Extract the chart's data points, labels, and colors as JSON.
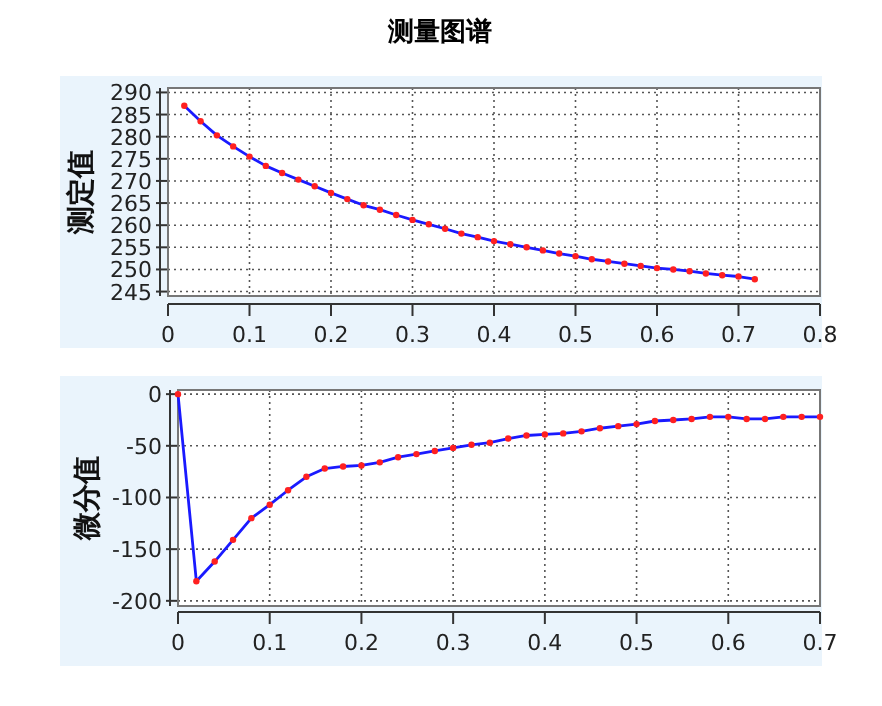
{
  "chart_data": [
    {
      "type": "line",
      "title": "测量图谱",
      "ylabel": "测定值",
      "x": [
        0.02,
        0.04,
        0.06,
        0.08,
        0.1,
        0.12,
        0.14,
        0.16,
        0.18,
        0.2,
        0.22,
        0.24,
        0.26,
        0.28,
        0.3,
        0.32,
        0.34,
        0.36,
        0.38,
        0.4,
        0.42,
        0.44,
        0.46,
        0.48,
        0.5,
        0.52,
        0.54,
        0.56,
        0.58,
        0.6,
        0.62,
        0.64,
        0.66,
        0.68,
        0.7,
        0.72
      ],
      "series": [
        {
          "color": "#1a1aff",
          "values": [
            287,
            283.5,
            280.3,
            277.8,
            275.5,
            273.4,
            271.8,
            270.3,
            268.8,
            267.3,
            265.9,
            264.5,
            263.5,
            262.3,
            261.2,
            260.2,
            259.2,
            258.1,
            257.3,
            256.4,
            255.7,
            255,
            254.3,
            253.6,
            253,
            252.3,
            251.8,
            251.3,
            250.8,
            250.3,
            250,
            249.6,
            249.1,
            248.7,
            248.4,
            247.8
          ]
        }
      ],
      "xlim": [
        0,
        0.8
      ],
      "xticks": [
        0,
        0.1,
        0.2,
        0.3,
        0.4,
        0.5,
        0.6,
        0.7,
        0.8
      ],
      "ylim": [
        244,
        291
      ],
      "yticks": [
        245,
        250,
        255,
        260,
        265,
        270,
        275,
        280,
        285,
        290
      ],
      "grid": true,
      "marker": "circle",
      "line_style": "solid"
    },
    {
      "type": "line",
      "ylabel": "微分值",
      "x": [
        0,
        0.02,
        0.04,
        0.06,
        0.08,
        0.1,
        0.12,
        0.14,
        0.16,
        0.18,
        0.2,
        0.22,
        0.24,
        0.26,
        0.28,
        0.3,
        0.32,
        0.34,
        0.36,
        0.38,
        0.4,
        0.42,
        0.44,
        0.46,
        0.48,
        0.5,
        0.52,
        0.54,
        0.56,
        0.58,
        0.6,
        0.62,
        0.64,
        0.66,
        0.68,
        0.7
      ],
      "series": [
        {
          "color": "#1a1aff",
          "values": [
            0,
            -181,
            -162,
            -141,
            -120,
            -107,
            -93,
            -80,
            -72,
            -70,
            -69,
            -66,
            -61,
            -58,
            -55,
            -52,
            -49,
            -47,
            -43,
            -40,
            -39,
            -38,
            -36,
            -33,
            -31,
            -29,
            -26,
            -25,
            -24,
            -22,
            -22,
            -24,
            -24,
            -22,
            -22,
            -22
          ]
        }
      ],
      "xlim": [
        0,
        0.7
      ],
      "xticks": [
        0,
        0.1,
        0.2,
        0.3,
        0.4,
        0.5,
        0.6,
        0.7
      ],
      "ylim": [
        -205,
        4
      ],
      "yticks": [
        -200,
        -150,
        -100,
        -50,
        0
      ],
      "grid": true,
      "marker": "circle",
      "line_style": "solid"
    }
  ]
}
